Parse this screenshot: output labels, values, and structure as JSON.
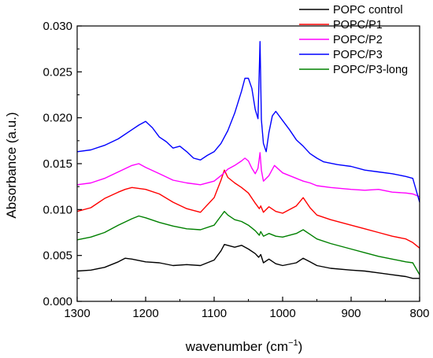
{
  "chart_data": {
    "type": "line",
    "title": "",
    "xlabel": "wavenumber (cm",
    "xlabel_sup": "−1",
    "xlabel_suffix": ")",
    "ylabel": "Absorbance (a.u.)",
    "xlim": [
      1300,
      800
    ],
    "ylim": [
      0.0,
      0.03
    ],
    "x_reversed": true,
    "xticks": [
      1300,
      1200,
      1100,
      1000,
      900,
      800
    ],
    "xtick_labels": [
      "1300",
      "1200",
      "1100",
      "1000",
      "900",
      "800"
    ],
    "yticks": [
      0,
      0.005,
      0.01,
      0.015,
      0.02,
      0.025,
      0.03
    ],
    "ytick_labels": [
      "0.000",
      "0.005",
      "0.010",
      "0.015",
      "0.020",
      "0.025",
      "0.030"
    ],
    "grid": false,
    "legend_position": "top-right",
    "series": [
      {
        "name": "POPC control",
        "color": "#000000",
        "x": [
          1300,
          1280,
          1260,
          1240,
          1230,
          1220,
          1200,
          1180,
          1160,
          1140,
          1120,
          1100,
          1090,
          1085,
          1070,
          1060,
          1050,
          1040,
          1035,
          1032,
          1028,
          1020,
          1010,
          1000,
          980,
          970,
          960,
          950,
          930,
          900,
          880,
          860,
          840,
          820,
          810,
          800
        ],
        "y": [
          0.0033,
          0.0034,
          0.0037,
          0.0043,
          0.0047,
          0.0046,
          0.0043,
          0.0042,
          0.0039,
          0.004,
          0.0039,
          0.0045,
          0.0055,
          0.0062,
          0.0059,
          0.0061,
          0.0057,
          0.0052,
          0.0048,
          0.0051,
          0.0042,
          0.0046,
          0.0041,
          0.0039,
          0.0042,
          0.0047,
          0.0043,
          0.0039,
          0.0036,
          0.0034,
          0.0033,
          0.0031,
          0.0029,
          0.0027,
          0.0025,
          0.0025
        ]
      },
      {
        "name": "POPC/P1",
        "color": "#ff0000",
        "x": [
          1300,
          1280,
          1260,
          1240,
          1230,
          1220,
          1200,
          1180,
          1160,
          1140,
          1120,
          1100,
          1090,
          1085,
          1080,
          1070,
          1060,
          1050,
          1040,
          1034,
          1032,
          1028,
          1020,
          1010,
          1000,
          980,
          970,
          960,
          950,
          930,
          900,
          880,
          860,
          840,
          820,
          810,
          800
        ],
        "y": [
          0.0098,
          0.0102,
          0.0112,
          0.0119,
          0.0122,
          0.0124,
          0.0122,
          0.0117,
          0.0108,
          0.0101,
          0.0097,
          0.0113,
          0.0132,
          0.0143,
          0.0135,
          0.0129,
          0.0124,
          0.0118,
          0.0107,
          0.0101,
          0.0104,
          0.0097,
          0.0103,
          0.0098,
          0.0096,
          0.0104,
          0.0113,
          0.0102,
          0.0094,
          0.0089,
          0.0083,
          0.0079,
          0.0075,
          0.0071,
          0.0068,
          0.0064,
          0.0058
        ]
      },
      {
        "name": "POPC/P2",
        "color": "#ff00ff",
        "x": [
          1300,
          1280,
          1260,
          1240,
          1220,
          1210,
          1200,
          1180,
          1160,
          1140,
          1120,
          1100,
          1090,
          1080,
          1070,
          1060,
          1055,
          1050,
          1045,
          1040,
          1036,
          1033,
          1031,
          1028,
          1020,
          1012,
          1000,
          980,
          970,
          960,
          950,
          930,
          900,
          880,
          860,
          840,
          820,
          810,
          800
        ],
        "y": [
          0.0127,
          0.0129,
          0.0134,
          0.0141,
          0.0148,
          0.015,
          0.0146,
          0.0139,
          0.0132,
          0.0129,
          0.0127,
          0.0131,
          0.0137,
          0.0144,
          0.0148,
          0.0153,
          0.0156,
          0.0153,
          0.0145,
          0.0139,
          0.0145,
          0.0162,
          0.0143,
          0.0131,
          0.0137,
          0.0148,
          0.014,
          0.0134,
          0.0131,
          0.0129,
          0.0126,
          0.0124,
          0.0122,
          0.0121,
          0.0122,
          0.0119,
          0.0118,
          0.0117,
          0.0114
        ]
      },
      {
        "name": "POPC/P3",
        "color": "#0000ff",
        "x": [
          1300,
          1280,
          1260,
          1240,
          1220,
          1210,
          1200,
          1190,
          1180,
          1170,
          1160,
          1150,
          1140,
          1130,
          1120,
          1110,
          1100,
          1090,
          1080,
          1070,
          1060,
          1055,
          1050,
          1045,
          1040,
          1036,
          1033,
          1031,
          1028,
          1024,
          1020,
          1015,
          1010,
          1000,
          990,
          980,
          970,
          960,
          950,
          940,
          920,
          900,
          880,
          860,
          840,
          820,
          810,
          800
        ],
        "y": [
          0.0163,
          0.0165,
          0.017,
          0.0177,
          0.0187,
          0.0192,
          0.0196,
          0.0189,
          0.0179,
          0.0174,
          0.0167,
          0.0169,
          0.0163,
          0.0156,
          0.0154,
          0.0159,
          0.0163,
          0.0172,
          0.0186,
          0.0205,
          0.0229,
          0.0243,
          0.0243,
          0.0232,
          0.0209,
          0.0199,
          0.0283,
          0.0198,
          0.0172,
          0.0163,
          0.0184,
          0.0202,
          0.0207,
          0.0197,
          0.0187,
          0.0176,
          0.0169,
          0.0161,
          0.0156,
          0.0152,
          0.0149,
          0.0147,
          0.0143,
          0.0141,
          0.0139,
          0.0136,
          0.0134,
          0.0108
        ]
      },
      {
        "name": "POPC/P3-long",
        "color": "#008000",
        "x": [
          1300,
          1280,
          1260,
          1240,
          1220,
          1210,
          1200,
          1180,
          1160,
          1140,
          1120,
          1100,
          1090,
          1085,
          1080,
          1070,
          1060,
          1050,
          1040,
          1034,
          1032,
          1028,
          1020,
          1010,
          1000,
          980,
          970,
          960,
          950,
          930,
          900,
          880,
          860,
          840,
          820,
          810,
          800
        ],
        "y": [
          0.0067,
          0.007,
          0.0075,
          0.0083,
          0.009,
          0.0093,
          0.0091,
          0.0086,
          0.0082,
          0.0079,
          0.0078,
          0.0083,
          0.0093,
          0.0098,
          0.0094,
          0.0089,
          0.0087,
          0.0083,
          0.0077,
          0.0072,
          0.0076,
          0.0071,
          0.0074,
          0.0071,
          0.007,
          0.0074,
          0.0078,
          0.0073,
          0.0068,
          0.0063,
          0.0057,
          0.0053,
          0.0049,
          0.0046,
          0.0043,
          0.0042,
          0.0029
        ]
      }
    ]
  }
}
